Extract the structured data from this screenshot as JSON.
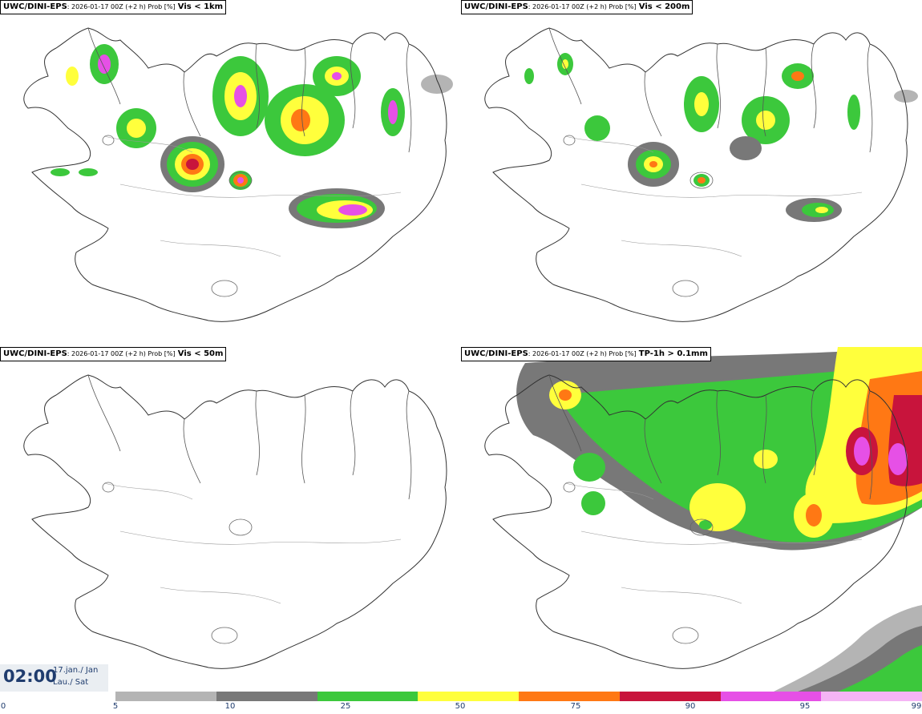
{
  "panels": [
    {
      "model": "UWC/DINI-EPS",
      "meta": ": 2026-01-17 00Z (+2 h) Prob [%]",
      "var": "Vis < 1km"
    },
    {
      "model": "UWC/DINI-EPS",
      "meta": ": 2026-01-17 00Z (+2 h) Prob [%]",
      "var": "Vis < 200m"
    },
    {
      "model": "UWC/DINI-EPS",
      "meta": ": 2026-01-17 00Z (+2 h) Prob [%]",
      "var": "Vis < 50m"
    },
    {
      "model": "UWC/DINI-EPS",
      "meta": ": 2026-01-17 00Z (+2 h) Prob [%]",
      "var": "TP-1h > 0.1mm"
    }
  ],
  "time": {
    "clock": "02:00",
    "date": "17.jan./ Jan",
    "day": "Lau./ Sat"
  },
  "legend": {
    "ticks": [
      "0",
      "5",
      "10",
      "25",
      "50",
      "75",
      "90",
      "95",
      "99"
    ],
    "colors": [
      "#b4b4b4",
      "#787878",
      "#3cc83c",
      "#ffff3c",
      "#ff7814",
      "#c8143c",
      "#e650e6",
      "#f5b4f5"
    ]
  }
}
